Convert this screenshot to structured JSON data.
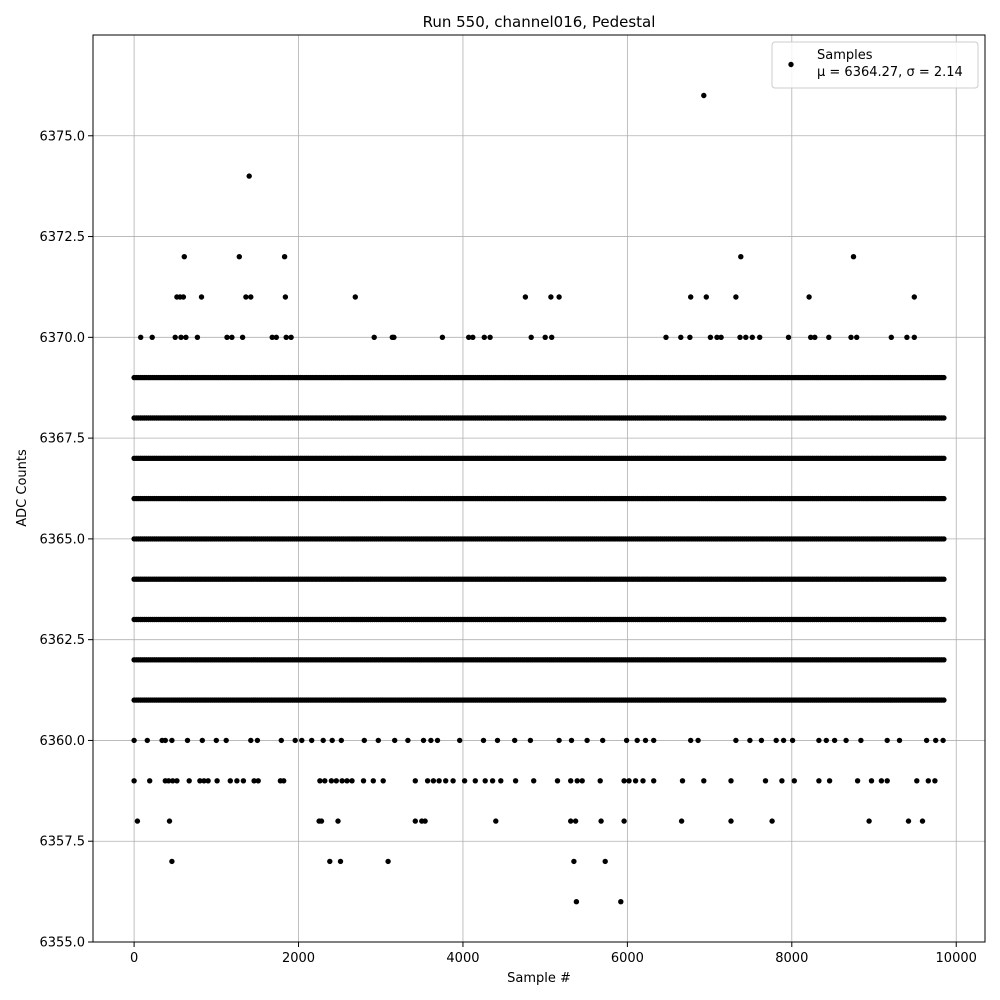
{
  "chart_data": {
    "type": "scatter",
    "title": "Run 550, channel016, Pedestal",
    "xlabel": "Sample #",
    "ylabel": "ADC Counts",
    "xlim": [
      -500,
      10350
    ],
    "ylim": [
      6355.0,
      6377.5
    ],
    "xticks": [
      0,
      2000,
      4000,
      6000,
      8000,
      10000
    ],
    "yticks": [
      6355.0,
      6357.5,
      6360.0,
      6362.5,
      6365.0,
      6367.5,
      6370.0,
      6372.5,
      6375.0
    ],
    "xtick_labels": [
      "0",
      "2000",
      "4000",
      "6000",
      "8000",
      "10000"
    ],
    "ytick_labels": [
      "6355.0",
      "6357.5",
      "6360.0",
      "6362.5",
      "6365.0",
      "6367.5",
      "6370.0",
      "6372.5",
      "6375.0"
    ],
    "grid": true,
    "legend_position": "top-right",
    "marker_color": "#000000",
    "series": [
      {
        "name": "Samples",
        "stats_label": "μ = 6364.27, σ = 2.14",
        "points": [
          [
            6930,
            6376
          ],
          [
            1400,
            6374
          ],
          [
            610,
            6372
          ],
          [
            1280,
            6372
          ],
          [
            1830,
            6372
          ],
          [
            7380,
            6372
          ],
          [
            8750,
            6372
          ],
          [
            520,
            6371
          ],
          [
            560,
            6371
          ],
          [
            600,
            6371
          ],
          [
            820,
            6371
          ],
          [
            1360,
            6371
          ],
          [
            1420,
            6371
          ],
          [
            1840,
            6371
          ],
          [
            2690,
            6371
          ],
          [
            4760,
            6371
          ],
          [
            5070,
            6371
          ],
          [
            5170,
            6371
          ],
          [
            6770,
            6371
          ],
          [
            6960,
            6371
          ],
          [
            7320,
            6371
          ],
          [
            8210,
            6371
          ],
          [
            9490,
            6371
          ],
          [
            80,
            6370
          ],
          [
            220,
            6370
          ],
          [
            500,
            6370
          ],
          [
            570,
            6370
          ],
          [
            630,
            6370
          ],
          [
            770,
            6370
          ],
          [
            1130,
            6370
          ],
          [
            1190,
            6370
          ],
          [
            1320,
            6370
          ],
          [
            1680,
            6370
          ],
          [
            1730,
            6370
          ],
          [
            1850,
            6370
          ],
          [
            1910,
            6370
          ],
          [
            2920,
            6370
          ],
          [
            3140,
            6370
          ],
          [
            3160,
            6370
          ],
          [
            3750,
            6370
          ],
          [
            4070,
            6370
          ],
          [
            4120,
            6370
          ],
          [
            4260,
            6370
          ],
          [
            4330,
            6370
          ],
          [
            4830,
            6370
          ],
          [
            5000,
            6370
          ],
          [
            5080,
            6370
          ],
          [
            6470,
            6370
          ],
          [
            6650,
            6370
          ],
          [
            6760,
            6370
          ],
          [
            7010,
            6370
          ],
          [
            7090,
            6370
          ],
          [
            7140,
            6370
          ],
          [
            7370,
            6370
          ],
          [
            7440,
            6370
          ],
          [
            7520,
            6370
          ],
          [
            7610,
            6370
          ],
          [
            7960,
            6370
          ],
          [
            8230,
            6370
          ],
          [
            8280,
            6370
          ],
          [
            8450,
            6370
          ],
          [
            8720,
            6370
          ],
          [
            8790,
            6370
          ],
          [
            9210,
            6370
          ],
          [
            9400,
            6370
          ],
          [
            9490,
            6370
          ],
          [
            40,
            6358
          ],
          [
            430,
            6358
          ],
          [
            2250,
            6358
          ],
          [
            2280,
            6358
          ],
          [
            2480,
            6358
          ],
          [
            3420,
            6358
          ],
          [
            3500,
            6358
          ],
          [
            3540,
            6358
          ],
          [
            4400,
            6358
          ],
          [
            5310,
            6358
          ],
          [
            5370,
            6358
          ],
          [
            5680,
            6358
          ],
          [
            5960,
            6358
          ],
          [
            6660,
            6358
          ],
          [
            7260,
            6358
          ],
          [
            7760,
            6358
          ],
          [
            8940,
            6358
          ],
          [
            9420,
            6358
          ],
          [
            9590,
            6358
          ],
          [
            460,
            6357
          ],
          [
            2380,
            6357
          ],
          [
            2510,
            6357
          ],
          [
            3090,
            6357
          ],
          [
            5350,
            6357
          ],
          [
            5730,
            6357
          ],
          [
            5380,
            6356
          ],
          [
            5920,
            6356
          ],
          [
            0,
            6359
          ],
          [
            190,
            6359
          ],
          [
            380,
            6359
          ],
          [
            420,
            6359
          ],
          [
            470,
            6359
          ],
          [
            520,
            6359
          ],
          [
            670,
            6359
          ],
          [
            800,
            6359
          ],
          [
            850,
            6359
          ],
          [
            900,
            6359
          ],
          [
            1010,
            6359
          ],
          [
            1170,
            6359
          ],
          [
            1250,
            6359
          ],
          [
            1330,
            6359
          ],
          [
            1460,
            6359
          ],
          [
            1510,
            6359
          ],
          [
            1780,
            6359
          ],
          [
            1820,
            6359
          ],
          [
            2260,
            6359
          ],
          [
            2320,
            6359
          ],
          [
            2400,
            6359
          ],
          [
            2460,
            6359
          ],
          [
            2530,
            6359
          ],
          [
            2590,
            6359
          ],
          [
            2650,
            6359
          ],
          [
            2790,
            6359
          ],
          [
            2910,
            6359
          ],
          [
            3030,
            6359
          ],
          [
            3420,
            6359
          ],
          [
            3570,
            6359
          ],
          [
            3640,
            6359
          ],
          [
            3710,
            6359
          ],
          [
            3790,
            6359
          ],
          [
            3880,
            6359
          ],
          [
            4020,
            6359
          ],
          [
            4150,
            6359
          ],
          [
            4270,
            6359
          ],
          [
            4360,
            6359
          ],
          [
            4460,
            6359
          ],
          [
            4640,
            6359
          ],
          [
            4860,
            6359
          ],
          [
            5150,
            6359
          ],
          [
            5310,
            6359
          ],
          [
            5390,
            6359
          ],
          [
            5450,
            6359
          ],
          [
            5670,
            6359
          ],
          [
            5960,
            6359
          ],
          [
            6020,
            6359
          ],
          [
            6100,
            6359
          ],
          [
            6190,
            6359
          ],
          [
            6320,
            6359
          ],
          [
            6670,
            6359
          ],
          [
            6930,
            6359
          ],
          [
            7260,
            6359
          ],
          [
            7680,
            6359
          ],
          [
            7880,
            6359
          ],
          [
            8030,
            6359
          ],
          [
            8330,
            6359
          ],
          [
            8460,
            6359
          ],
          [
            8800,
            6359
          ],
          [
            8970,
            6359
          ],
          [
            9090,
            6359
          ],
          [
            9160,
            6359
          ],
          [
            9520,
            6359
          ],
          [
            9660,
            6359
          ],
          [
            9740,
            6359
          ],
          [
            0,
            6360
          ],
          [
            160,
            6360
          ],
          [
            340,
            6360
          ],
          [
            380,
            6360
          ],
          [
            460,
            6360
          ],
          [
            650,
            6360
          ],
          [
            830,
            6360
          ],
          [
            1000,
            6360
          ],
          [
            1120,
            6360
          ],
          [
            1420,
            6360
          ],
          [
            1500,
            6360
          ],
          [
            1790,
            6360
          ],
          [
            1960,
            6360
          ],
          [
            2040,
            6360
          ],
          [
            2160,
            6360
          ],
          [
            2300,
            6360
          ],
          [
            2410,
            6360
          ],
          [
            2520,
            6360
          ],
          [
            2800,
            6360
          ],
          [
            2970,
            6360
          ],
          [
            3170,
            6360
          ],
          [
            3330,
            6360
          ],
          [
            3520,
            6360
          ],
          [
            3610,
            6360
          ],
          [
            3690,
            6360
          ],
          [
            3960,
            6360
          ],
          [
            4250,
            6360
          ],
          [
            4420,
            6360
          ],
          [
            4630,
            6360
          ],
          [
            4820,
            6360
          ],
          [
            5170,
            6360
          ],
          [
            5320,
            6360
          ],
          [
            5510,
            6360
          ],
          [
            5700,
            6360
          ],
          [
            5990,
            6360
          ],
          [
            6120,
            6360
          ],
          [
            6220,
            6360
          ],
          [
            6320,
            6360
          ],
          [
            6770,
            6360
          ],
          [
            6860,
            6360
          ],
          [
            7320,
            6360
          ],
          [
            7490,
            6360
          ],
          [
            7630,
            6360
          ],
          [
            7810,
            6360
          ],
          [
            7900,
            6360
          ],
          [
            8010,
            6360
          ],
          [
            8330,
            6360
          ],
          [
            8420,
            6360
          ],
          [
            8520,
            6360
          ],
          [
            8660,
            6360
          ],
          [
            8840,
            6360
          ],
          [
            9160,
            6360
          ],
          [
            9310,
            6360
          ],
          [
            9640,
            6360
          ],
          [
            9750,
            6360
          ],
          [
            9840,
            6360
          ]
        ],
        "bands": [
          {
            "y": 6361,
            "x_start": 0,
            "x_end": 9850
          },
          {
            "y": 6362,
            "x_start": 0,
            "x_end": 9850
          },
          {
            "y": 6363,
            "x_start": 0,
            "x_end": 9850
          },
          {
            "y": 6364,
            "x_start": 0,
            "x_end": 9850
          },
          {
            "y": 6365,
            "x_start": 0,
            "x_end": 9850
          },
          {
            "y": 6366,
            "x_start": 0,
            "x_end": 9850
          },
          {
            "y": 6367,
            "x_start": 0,
            "x_end": 9850
          },
          {
            "y": 6368,
            "x_start": 0,
            "x_end": 9850
          },
          {
            "y": 6369,
            "x_start": 0,
            "x_end": 9850
          }
        ]
      }
    ]
  }
}
